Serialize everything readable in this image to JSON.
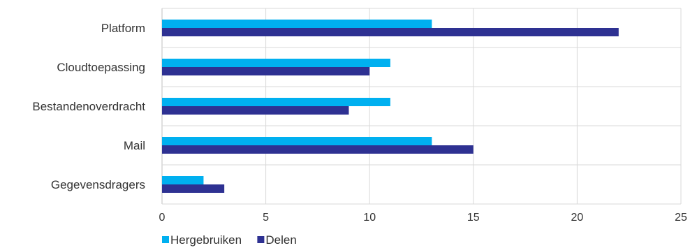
{
  "chart_data": {
    "type": "bar",
    "orientation": "horizontal",
    "categories": [
      "Platform",
      "Cloudtoepassing",
      "Bestandenoverdracht",
      "Mail",
      "Gegevensdragers"
    ],
    "series": [
      {
        "name": "Hergebruiken",
        "values": [
          13,
          11,
          11,
          13,
          2
        ],
        "color": "#00b0f0"
      },
      {
        "name": "Delen",
        "values": [
          22,
          10,
          9,
          15,
          3
        ],
        "color": "#2e3192"
      }
    ],
    "xlim": [
      0,
      25
    ],
    "xticks": [
      "0",
      "5",
      "10",
      "15",
      "20",
      "25"
    ],
    "grid": true,
    "legend_position": "bottom-left",
    "title": "",
    "xlabel": "",
    "ylabel": ""
  }
}
